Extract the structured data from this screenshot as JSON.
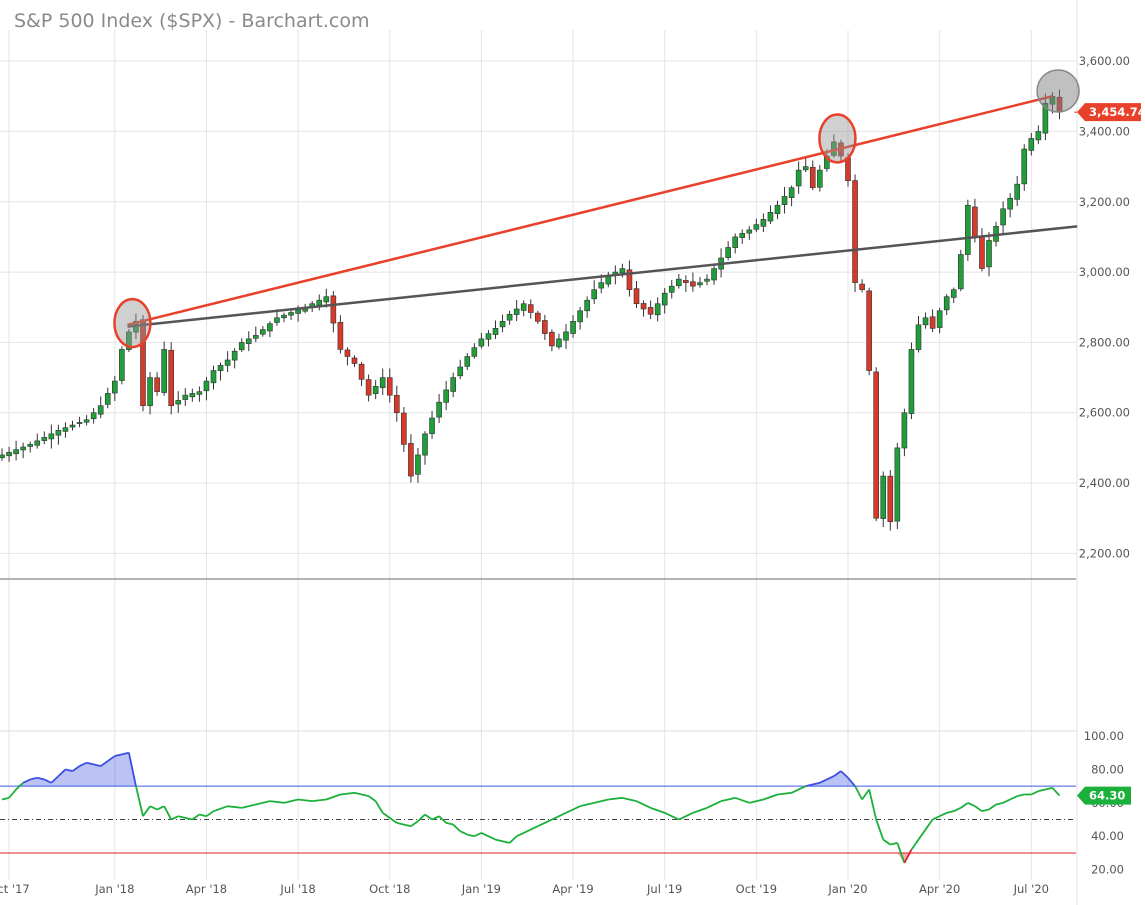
{
  "title": "S&P 500 Index ($SPX) - Barchart.com",
  "chart_data": [
    {
      "type": "candlestick",
      "name": "S&P 500 Index ($SPX)",
      "frequency": "weekly",
      "y_ticks": [
        "3,600.00",
        "3,400.00",
        "3,200.00",
        "3,000.00",
        "2,800.00",
        "2,600.00",
        "2,400.00",
        "2,200.00"
      ],
      "ylim": [
        2130,
        3660
      ],
      "x_ticks": [
        "Oct '17",
        "Jan '18",
        "Apr '18",
        "Jul '18",
        "Oct '18",
        "Jan '19",
        "Apr '19",
        "Jul '19",
        "Oct '19",
        "Jan '20",
        "Apr '20",
        "Jul '20"
      ],
      "last_price_label": "3,454.74",
      "last_price": 3454.74,
      "close_path": [
        [
          0,
          2480
        ],
        [
          4,
          2510
        ],
        [
          8,
          2550
        ],
        [
          12,
          2580
        ],
        [
          14,
          2620
        ],
        [
          16,
          2690
        ],
        [
          17,
          2780
        ],
        [
          18,
          2830
        ],
        [
          19,
          2860
        ],
        [
          20,
          2620
        ],
        [
          21,
          2700
        ],
        [
          22,
          2660
        ],
        [
          23,
          2780
        ],
        [
          24,
          2620
        ],
        [
          26,
          2650
        ],
        [
          28,
          2660
        ],
        [
          30,
          2720
        ],
        [
          32,
          2750
        ],
        [
          34,
          2800
        ],
        [
          36,
          2820
        ],
        [
          39,
          2870
        ],
        [
          43,
          2900
        ],
        [
          46,
          2930
        ],
        [
          48,
          2780
        ],
        [
          50,
          2740
        ],
        [
          52,
          2650
        ],
        [
          54,
          2700
        ],
        [
          56,
          2600
        ],
        [
          58,
          2420
        ],
        [
          59,
          2480
        ],
        [
          60,
          2540
        ],
        [
          62,
          2630
        ],
        [
          64,
          2700
        ],
        [
          66,
          2760
        ],
        [
          68,
          2810
        ],
        [
          70,
          2840
        ],
        [
          72,
          2880
        ],
        [
          74,
          2910
        ],
        [
          76,
          2860
        ],
        [
          78,
          2790
        ],
        [
          80,
          2830
        ],
        [
          82,
          2890
        ],
        [
          84,
          2950
        ],
        [
          86,
          2990
        ],
        [
          88,
          3010
        ],
        [
          89,
          2950
        ],
        [
          90,
          2910
        ],
        [
          92,
          2880
        ],
        [
          94,
          2940
        ],
        [
          96,
          2980
        ],
        [
          98,
          2960
        ],
        [
          100,
          2980
        ],
        [
          102,
          3040
        ],
        [
          104,
          3100
        ],
        [
          106,
          3120
        ],
        [
          108,
          3150
        ],
        [
          110,
          3190
        ],
        [
          112,
          3240
        ],
        [
          113,
          3290
        ],
        [
          114,
          3300
        ],
        [
          115,
          3240
        ],
        [
          116,
          3290
        ],
        [
          117,
          3330
        ],
        [
          118,
          3370
        ],
        [
          119,
          3330
        ],
        [
          120,
          3260
        ],
        [
          121,
          2970
        ],
        [
          122,
          2950
        ],
        [
          123,
          2720
        ],
        [
          124,
          2300
        ],
        [
          125,
          2420
        ],
        [
          126,
          2290
        ],
        [
          127,
          2500
        ],
        [
          128,
          2600
        ],
        [
          129,
          2780
        ],
        [
          130,
          2850
        ],
        [
          131,
          2870
        ],
        [
          132,
          2840
        ],
        [
          133,
          2890
        ],
        [
          134,
          2930
        ],
        [
          135,
          2950
        ],
        [
          136,
          3050
        ],
        [
          137,
          3190
        ],
        [
          138,
          3100
        ],
        [
          139,
          3010
        ],
        [
          140,
          3090
        ],
        [
          141,
          3130
        ],
        [
          142,
          3180
        ],
        [
          143,
          3210
        ],
        [
          144,
          3250
        ],
        [
          145,
          3350
        ],
        [
          146,
          3380
        ],
        [
          147,
          3400
        ],
        [
          148,
          3480
        ],
        [
          149,
          3500
        ],
        [
          150,
          3454.74
        ]
      ],
      "trendlines": [
        {
          "color": "#e8402a",
          "from": [
            17.8,
            2850
          ],
          "to": [
            149,
            3500
          ]
        },
        {
          "color": "#555555",
          "from": [
            17.8,
            2845
          ],
          "to": [
            152.5,
            3130
          ]
        }
      ],
      "highlight_circles": [
        {
          "style": "red-outline",
          "at": [
            18.5,
            2855
          ]
        },
        {
          "style": "red-outline",
          "at": [
            118.5,
            3380
          ]
        },
        {
          "style": "gray-filled",
          "at": [
            149.8,
            3515
          ]
        }
      ]
    },
    {
      "type": "line",
      "name": "RSI",
      "y_ticks": [
        "100.00",
        "80.00",
        "60.00",
        "40.00",
        "20.00"
      ],
      "ylim": [
        15,
        103
      ],
      "overbought": 70,
      "midline": 50,
      "oversold": 30,
      "last_value_label": "64.30",
      "values": [
        [
          0,
          62
        ],
        [
          1,
          63
        ],
        [
          2,
          68
        ],
        [
          3,
          72
        ],
        [
          4,
          74
        ],
        [
          5,
          75
        ],
        [
          6,
          74
        ],
        [
          7,
          72
        ],
        [
          8,
          76
        ],
        [
          9,
          80
        ],
        [
          10,
          79
        ],
        [
          11,
          82
        ],
        [
          12,
          84
        ],
        [
          13,
          83
        ],
        [
          14,
          82
        ],
        [
          15,
          85
        ],
        [
          16,
          88
        ],
        [
          17,
          89
        ],
        [
          18,
          90
        ],
        [
          19,
          70
        ],
        [
          20,
          52
        ],
        [
          21,
          58
        ],
        [
          22,
          56
        ],
        [
          23,
          58
        ],
        [
          24,
          50
        ],
        [
          25,
          52
        ],
        [
          26,
          51
        ],
        [
          27,
          50
        ],
        [
          28,
          53
        ],
        [
          29,
          52
        ],
        [
          30,
          55
        ],
        [
          32,
          58
        ],
        [
          34,
          57
        ],
        [
          36,
          59
        ],
        [
          38,
          61
        ],
        [
          40,
          60
        ],
        [
          42,
          62
        ],
        [
          44,
          61
        ],
        [
          46,
          62
        ],
        [
          48,
          65
        ],
        [
          50,
          66
        ],
        [
          52,
          64
        ],
        [
          53,
          61
        ],
        [
          54,
          54
        ],
        [
          56,
          48
        ],
        [
          58,
          46
        ],
        [
          59,
          49
        ],
        [
          60,
          53
        ],
        [
          61,
          50
        ],
        [
          62,
          52
        ],
        [
          63,
          48
        ],
        [
          64,
          47
        ],
        [
          65,
          43
        ],
        [
          66,
          41
        ],
        [
          67,
          40
        ],
        [
          68,
          42
        ],
        [
          70,
          38
        ],
        [
          72,
          36
        ],
        [
          73,
          40
        ],
        [
          74,
          42
        ],
        [
          76,
          46
        ],
        [
          78,
          50
        ],
        [
          80,
          54
        ],
        [
          82,
          58
        ],
        [
          84,
          60
        ],
        [
          86,
          62
        ],
        [
          88,
          63
        ],
        [
          90,
          61
        ],
        [
          92,
          57
        ],
        [
          94,
          54
        ],
        [
          96,
          50
        ],
        [
          98,
          54
        ],
        [
          100,
          57
        ],
        [
          102,
          61
        ],
        [
          104,
          63
        ],
        [
          106,
          60
        ],
        [
          108,
          62
        ],
        [
          110,
          65
        ],
        [
          112,
          66
        ],
        [
          114,
          70
        ],
        [
          116,
          72
        ],
        [
          118,
          76
        ],
        [
          119,
          79
        ],
        [
          120,
          75
        ],
        [
          121,
          70
        ],
        [
          122,
          62
        ],
        [
          123,
          68
        ],
        [
          124,
          50
        ],
        [
          125,
          38
        ],
        [
          126,
          35
        ],
        [
          127,
          36
        ],
        [
          128,
          24
        ],
        [
          129,
          32
        ],
        [
          130,
          38
        ],
        [
          131,
          44
        ],
        [
          132,
          50
        ],
        [
          133,
          52
        ],
        [
          134,
          54
        ],
        [
          135,
          55
        ],
        [
          136,
          57
        ],
        [
          137,
          60
        ],
        [
          138,
          58
        ],
        [
          139,
          55
        ],
        [
          140,
          56
        ],
        [
          141,
          59
        ],
        [
          142,
          60
        ],
        [
          143,
          62
        ],
        [
          144,
          64
        ],
        [
          145,
          65
        ],
        [
          146,
          65
        ],
        [
          147,
          67
        ],
        [
          148,
          68
        ],
        [
          149,
          69
        ],
        [
          150,
          64.3
        ]
      ]
    }
  ],
  "colors": {
    "up_candle": "#1f9e3a",
    "down_candle": "#d63a2a",
    "price_badge": "#e8402a",
    "rsi_line": "#1bb03a",
    "rsi_fill_overbought": "#3b4fe0",
    "rsi_fill_oversold": "#e0202a",
    "overbought_line": "#3b5be0",
    "oversold_line": "#e0202a",
    "rsi_badge": "#1bb03a",
    "grid": "#e4e4e4"
  }
}
